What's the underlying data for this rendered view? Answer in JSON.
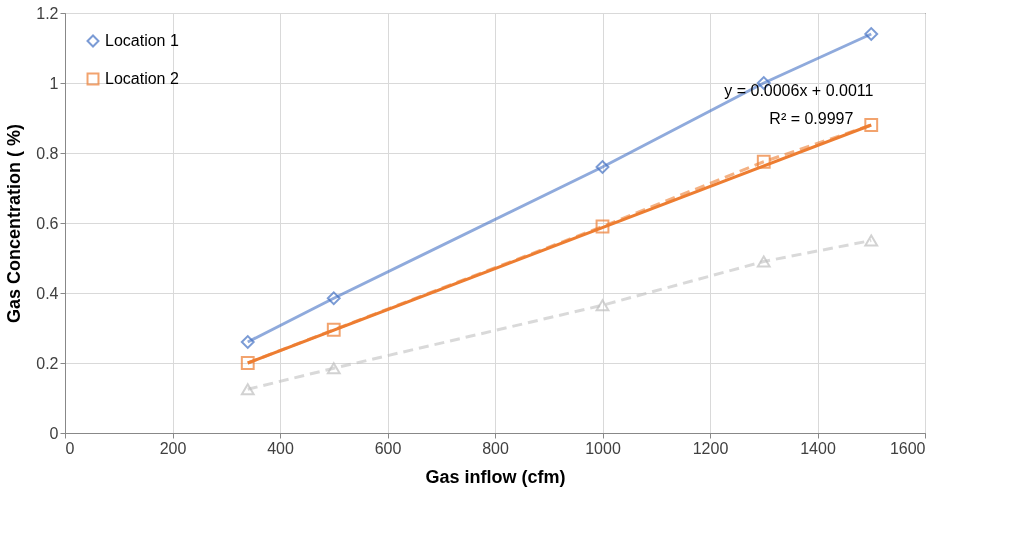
{
  "chart_data": {
    "type": "line",
    "xlabel": "Gas inflow (cfm)",
    "ylabel": "Gas Concentration ( %)",
    "series": [
      {
        "name": "Location 1",
        "color": "#4472c4",
        "x": [
          340,
          500,
          1000,
          1300,
          1500
        ],
        "values": [
          0.26,
          0.385,
          0.76,
          1.0,
          1.14
        ],
        "marker": "diamond",
        "line_style": "solid"
      },
      {
        "name": "Location 2",
        "color": "#ed7d31",
        "x": [
          340,
          500,
          1000,
          1300,
          1500
        ],
        "values": [
          0.2,
          0.295,
          0.59,
          0.775,
          0.88
        ],
        "marker": "square",
        "line_style": "dashed"
      },
      {
        "color": "#bfbfbf",
        "x": [
          340,
          500,
          1000,
          1300,
          1500
        ],
        "values": [
          0.125,
          0.185,
          0.365,
          0.49,
          0.55
        ],
        "marker": "triangle",
        "line_style": "dashed"
      },
      {
        "type": "line",
        "color": "#ed7d31",
        "x": [
          340,
          1500
        ],
        "values": [
          0.2,
          0.88
        ],
        "marker": "none",
        "line_style": "solid"
      }
    ],
    "annotations": [
      "y = 0.0006x + 0.0011",
      "R² = 0.9997"
    ],
    "xlim": [
      0,
      1600
    ],
    "xticks": [
      0,
      200,
      400,
      600,
      800,
      1000,
      1200,
      1400,
      1600
    ],
    "ylim": [
      0,
      1.2
    ],
    "yticks": [
      0,
      0.2,
      0.4,
      0.6,
      0.8,
      1,
      1.2
    ],
    "grid": true,
    "legend": "top left"
  }
}
